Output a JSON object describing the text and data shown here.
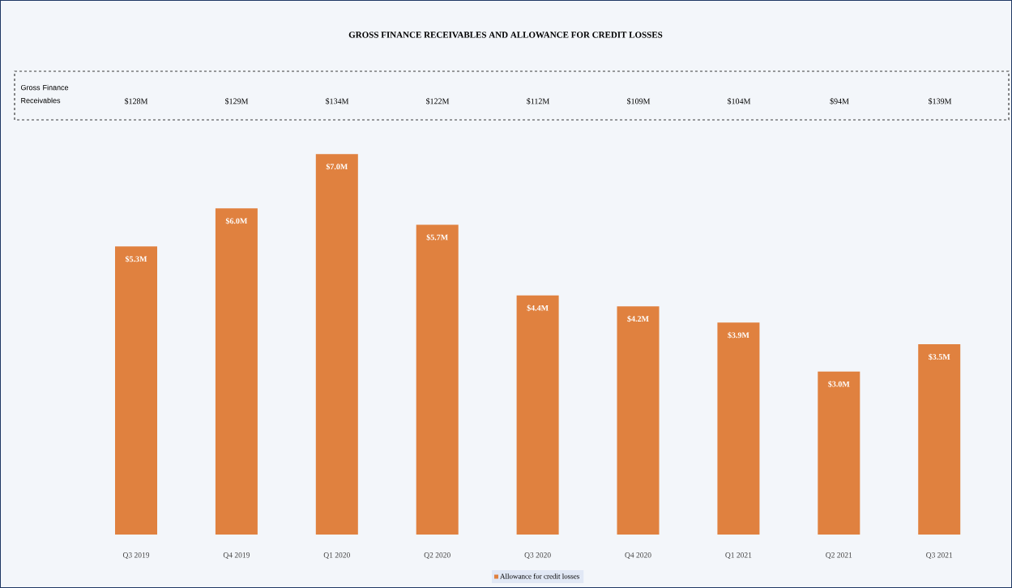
{
  "chart_data": {
    "type": "bar",
    "title": "GROSS FINANCE RECEIVABLES AND ALLOWANCE FOR CREDIT LOSSES",
    "categories": [
      "Q3 2019",
      "Q4 2019",
      "Q1 2020",
      "Q2 2020",
      "Q3 2020",
      "Q4 2020",
      "Q1 2021",
      "Q2 2021",
      "Q3 2021"
    ],
    "series": [
      {
        "name": "Allowance for credit losses",
        "color": "#e0813f",
        "values": [
          5.3,
          6.0,
          7.0,
          5.7,
          4.4,
          4.2,
          3.9,
          3.0,
          3.5
        ],
        "value_labels": [
          "$5.3M",
          "$6.0M",
          "$7.0M",
          "$5.7M",
          "$4.4M",
          "$4.2M",
          "$3.9M",
          "$3.0M",
          "$3.5M"
        ]
      }
    ],
    "annotations": [
      "Gross Finance Receivables",
      "$128M",
      "$129M",
      "$134M",
      "$122M",
      "$112M",
      "$109M",
      "$104M",
      "$94M",
      "$139M"
    ],
    "legend": "bottom"
  }
}
